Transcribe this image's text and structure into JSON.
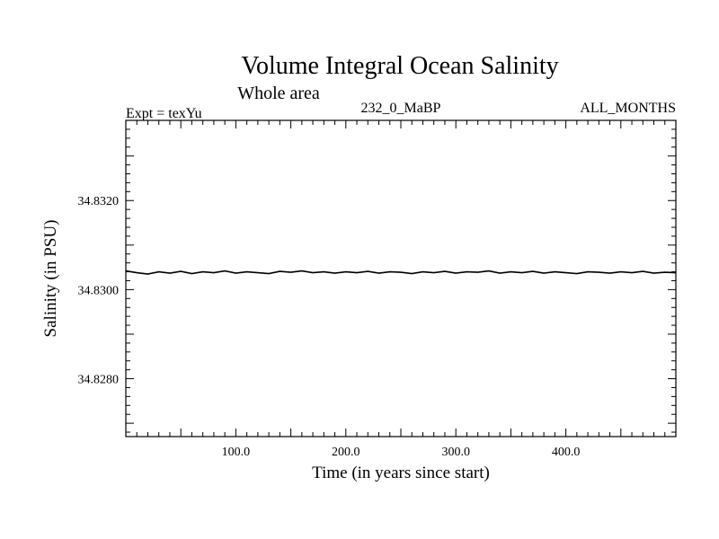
{
  "chart_data": {
    "type": "line",
    "title": "Volume Integral Ocean Salinity",
    "subtitle": "Whole area",
    "header_left": "Expt = texYu",
    "header_center": "232_0_MaBP",
    "header_right": "ALL_MONTHS",
    "xlabel": "Time (in years since start)",
    "ylabel": "Salinity (in PSU)",
    "xlim": [
      0,
      500
    ],
    "ylim": [
      34.8267,
      34.8338
    ],
    "x_ticks": [
      "100.0",
      "200.0",
      "300.0",
      "400.0"
    ],
    "y_ticks": [
      "34.8280",
      "34.8300",
      "34.8320"
    ],
    "grid": false,
    "series": [
      {
        "color": "#000000",
        "x": [
          0,
          10,
          20,
          30,
          40,
          50,
          60,
          70,
          80,
          90,
          100,
          110,
          120,
          130,
          140,
          150,
          160,
          170,
          180,
          190,
          200,
          210,
          220,
          230,
          240,
          250,
          260,
          270,
          280,
          290,
          300,
          310,
          320,
          330,
          340,
          350,
          360,
          370,
          380,
          390,
          400,
          410,
          420,
          430,
          440,
          450,
          460,
          470,
          480,
          490,
          500
        ],
        "values": [
          34.83042,
          34.83038,
          34.83035,
          34.8304,
          34.83037,
          34.83041,
          34.83036,
          34.8304,
          34.83038,
          34.83042,
          34.83037,
          34.8304,
          34.83038,
          34.83036,
          34.83041,
          34.83039,
          34.83042,
          34.83038,
          34.8304,
          34.83037,
          34.8304,
          34.83038,
          34.83041,
          34.83037,
          34.8304,
          34.83039,
          34.83036,
          34.8304,
          34.83038,
          34.83041,
          34.83037,
          34.8304,
          34.83039,
          34.83042,
          34.83037,
          34.8304,
          34.83038,
          34.83041,
          34.83037,
          34.8304,
          34.83038,
          34.83036,
          34.8304,
          34.83039,
          34.83037,
          34.8304,
          34.83038,
          34.83041,
          34.83037,
          34.83039,
          34.83038
        ]
      }
    ]
  }
}
